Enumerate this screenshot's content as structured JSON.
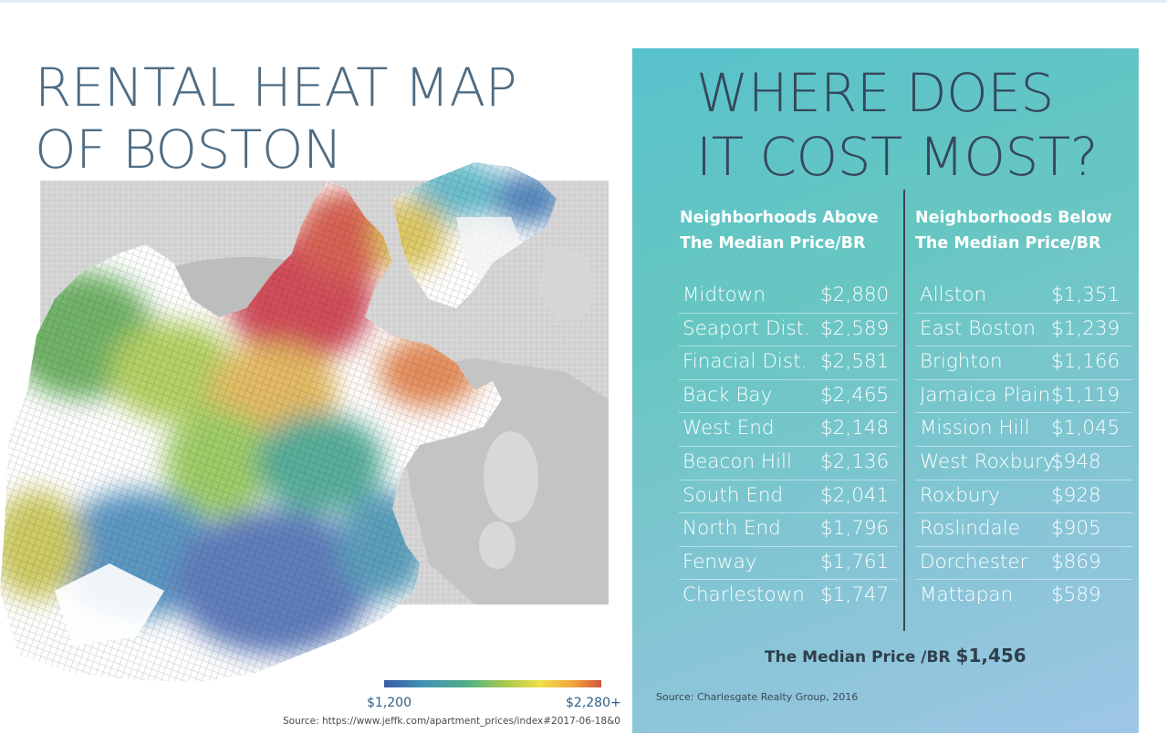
{
  "title": {
    "line1": "RENTAL HEAT MAP",
    "line2": "OF BOSTON"
  },
  "legend": {
    "low_label": "$1,200",
    "high_label": "$2,280+",
    "low_color": "#3b5ba8",
    "high_color": "#d1563a"
  },
  "map_source": "Source: https://www.jeffk.com/apartment_prices/index#2017-06-18&0",
  "panel": {
    "title_line1": "WHERE DOES",
    "title_line2": "IT COST MOST?",
    "left_head_line1": "Neighborhoods Above",
    "left_head_line2": "The Median Price/BR",
    "right_head_line1": "Neighborhoods Below",
    "right_head_line2": "The Median Price/BR",
    "above": [
      {
        "name": "Midtown",
        "price": "$2,880"
      },
      {
        "name": "Seaport Dist.",
        "price": "$2,589"
      },
      {
        "name": "Finacial Dist.",
        "price": "$2,581"
      },
      {
        "name": "Back Bay",
        "price": "$2,465"
      },
      {
        "name": "West End",
        "price": "$2,148"
      },
      {
        "name": "Beacon Hill",
        "price": "$2,136"
      },
      {
        "name": "South End",
        "price": "$2,041"
      },
      {
        "name": "North End",
        "price": "$1,796"
      },
      {
        "name": "Fenway",
        "price": "$1,761"
      },
      {
        "name": "Charlestown",
        "price": "$1,747"
      }
    ],
    "below": [
      {
        "name": "Allston",
        "price": "$1,351"
      },
      {
        "name": "East Boston",
        "price": "$1,239"
      },
      {
        "name": "Brighton",
        "price": "$1,166"
      },
      {
        "name": "Jamaica Plain",
        "price": "$1,119"
      },
      {
        "name": "Mission Hill",
        "price": "$1,045"
      },
      {
        "name": "West Roxbury",
        "price": "$948"
      },
      {
        "name": "Roxbury",
        "price": "$928"
      },
      {
        "name": "Roslindale",
        "price": "$905"
      },
      {
        "name": "Dorchester",
        "price": "$869"
      },
      {
        "name": "Mattapan",
        "price": "$589"
      }
    ],
    "median_label": "The Median Price /BR",
    "median_value": "$1,456",
    "source": "Source: Charlesgate Realty Group, 2016"
  }
}
